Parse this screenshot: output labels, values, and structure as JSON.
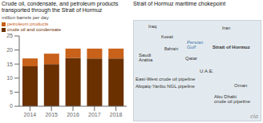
{
  "chart_data": {
    "type": "bar",
    "title": "Crude oil, condensate, and petroleum products transported through the Strait of Hormuz",
    "subtitle": "Strait of Hormuz maritime chokepoint",
    "y_label": "million barrels per day",
    "categories": [
      "2014",
      "2015",
      "2016",
      "2017",
      "2018"
    ],
    "series": [
      {
        "name": "crude oil and condensate",
        "color": "#6B3000",
        "values": [
          14.2,
          15.0,
          17.2,
          17.0,
          17.0
        ]
      },
      {
        "name": "petroleum products",
        "color": "#C8611A",
        "values": [
          2.8,
          3.7,
          3.3,
          3.5,
          3.5
        ]
      }
    ],
    "stacked": true,
    "ylim": [
      0,
      25
    ],
    "yticks": [
      0,
      5,
      10,
      15,
      20,
      25
    ],
    "grid": false,
    "legend": "upper left",
    "annotations": [
      "Iraq",
      "Iran",
      "Kuwait",
      "Persian\nGulf",
      "Bahrain",
      "Saudi\nArabia",
      "Qatar",
      "Strait of Hormuz",
      "U.A.E.",
      "East-West crude oil pipeline",
      "Abqaiq-Yanbu NGL pipeline",
      "Oman",
      "Abu Dhabi\ncrude oil pipeline",
      "eia"
    ]
  }
}
